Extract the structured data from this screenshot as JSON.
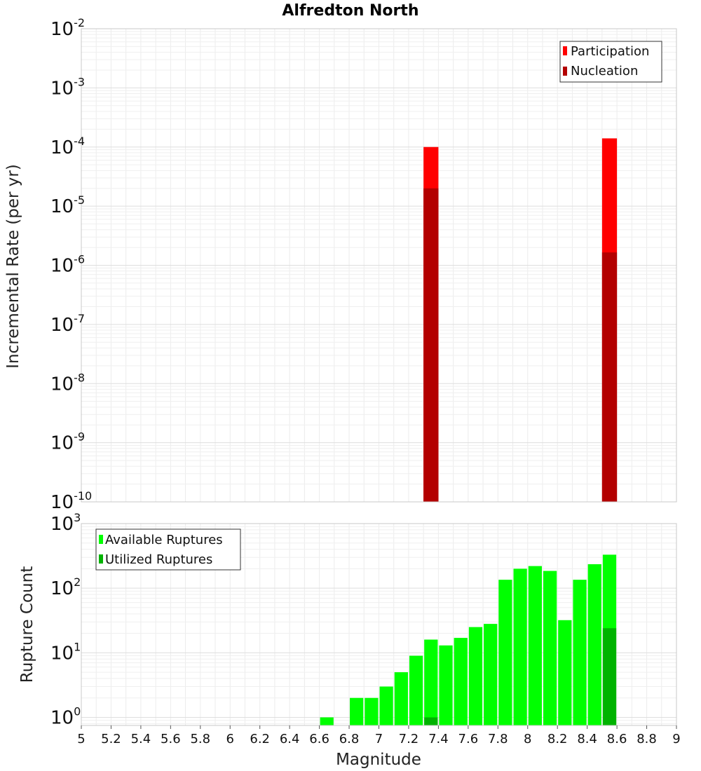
{
  "chart_data": [
    {
      "type": "bar",
      "title": "Alfredton North",
      "xlabel": "",
      "ylabel": "Incremental Rate (per yr)",
      "yscale": "log",
      "xlim": [
        5,
        9
      ],
      "ylim": [
        1e-10,
        0.01
      ],
      "y_decade_labels": [
        "10",
        "10",
        "10",
        "10",
        "10",
        "10",
        "10",
        "10",
        "10"
      ],
      "y_decade_exponents": [
        "-10",
        "-9",
        "-8",
        "-7",
        "-6",
        "-5",
        "-4",
        "-3",
        "-2"
      ],
      "legend_position": "top-right",
      "bin_width": 0.1,
      "series": [
        {
          "name": "Participation",
          "color": "#ff0000",
          "x": [
            7.35,
            8.55
          ],
          "values": [
            0.0001,
            0.00014
          ]
        },
        {
          "name": "Nucleation",
          "color": "#b30000",
          "x": [
            7.35,
            8.55
          ],
          "values": [
            2e-05,
            1.65e-06
          ]
        }
      ]
    },
    {
      "type": "bar",
      "title": "",
      "xlabel": "Magnitude",
      "ylabel": "Rupture Count",
      "yscale": "log",
      "xlim": [
        5,
        9
      ],
      "ylim": [
        0.75,
        1000
      ],
      "x_tick_labels": [
        "5",
        "5.2",
        "5.4",
        "5.6",
        "5.8",
        "6",
        "6.2",
        "6.4",
        "6.6",
        "6.8",
        "7",
        "7.2",
        "7.4",
        "7.6",
        "7.8",
        "8",
        "8.2",
        "8.4",
        "8.6",
        "8.8",
        "9"
      ],
      "y_decade_labels": [
        "10",
        "10",
        "10",
        "10"
      ],
      "y_decade_exponents": [
        "0",
        "1",
        "2",
        "3"
      ],
      "legend_position": "top-left",
      "bin_width": 0.1,
      "series": [
        {
          "name": "Available Ruptures",
          "color": "#00ff00",
          "x": [
            6.65,
            6.85,
            6.95,
            7.05,
            7.15,
            7.25,
            7.35,
            7.45,
            7.55,
            7.65,
            7.75,
            7.85,
            7.95,
            8.05,
            8.15,
            8.25,
            8.35,
            8.45,
            8.55
          ],
          "values": [
            1,
            2,
            2,
            3,
            5,
            9,
            16,
            13,
            17,
            25,
            28,
            135,
            200,
            220,
            185,
            32,
            135,
            235,
            330
          ]
        },
        {
          "name": "Utilized Ruptures",
          "color": "#00b300",
          "x": [
            7.35,
            8.55
          ],
          "values": [
            1,
            24
          ]
        }
      ]
    }
  ]
}
